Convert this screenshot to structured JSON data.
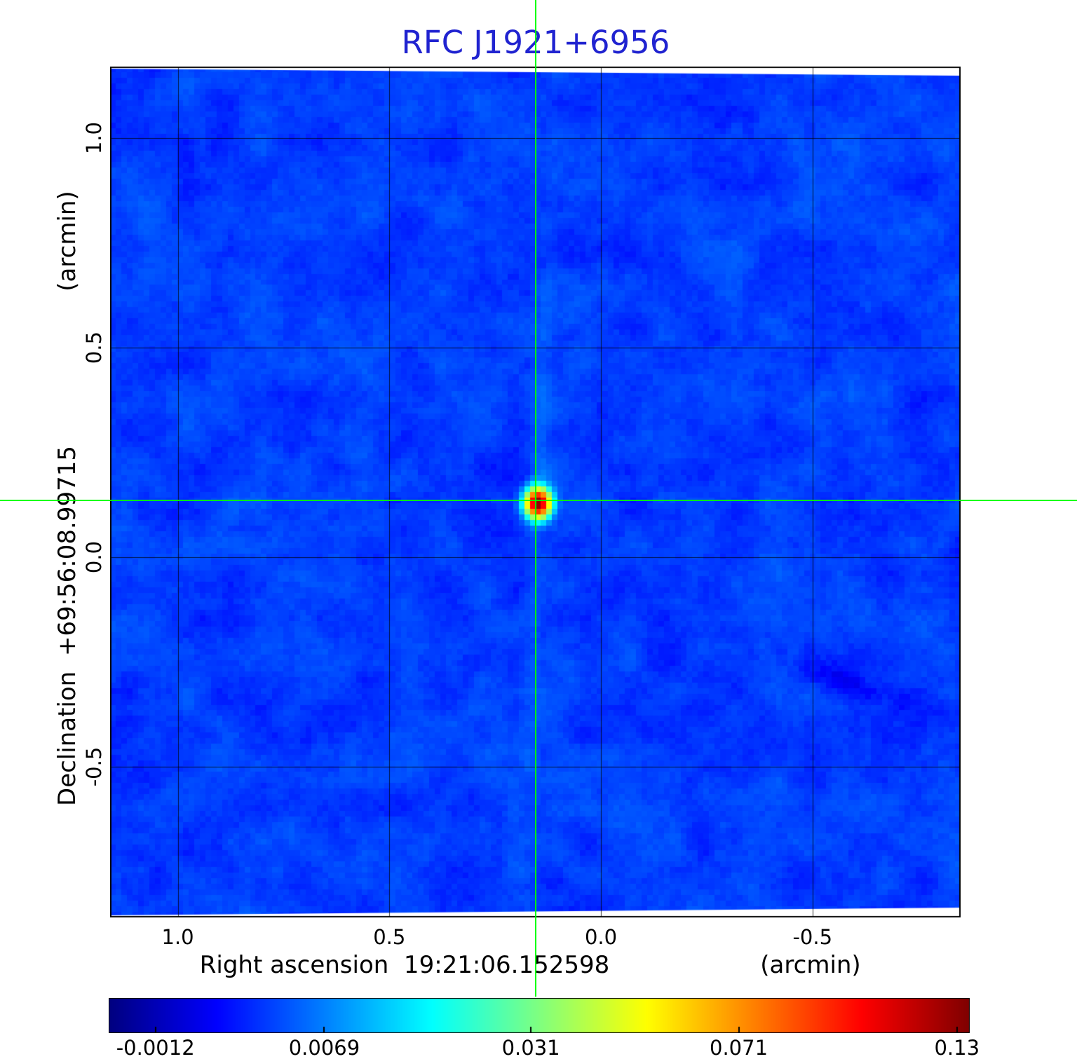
{
  "title": "RFC J1921+6956",
  "colors": {
    "title": "#2023d0",
    "crosshair": "#00ff00",
    "grid": "#000000",
    "frame": "#000000",
    "background": "#ffffff"
  },
  "x_axis": {
    "title": "Right ascension  19:21:06.152598",
    "unit": "(arcmin)",
    "tick_labels": [
      "1.0",
      "0.5",
      "0.0",
      "-0.5"
    ]
  },
  "y_axis": {
    "title": "Declination  +69:56:08.99715",
    "unit": "(arcmin)",
    "tick_labels": [
      "1.0",
      "0.5",
      "0.0",
      "-0.5"
    ]
  },
  "colorbar": {
    "tick_labels": [
      "-0.0012",
      "0.0069",
      "0.031",
      "0.071",
      "0.13"
    ]
  },
  "chart_data": {
    "type": "heatmap",
    "title": "RFC J1921+6956",
    "xlabel": "Right ascension 19:21:06.152598 (arcmin)",
    "ylabel": "Declination +69:56:08.99715 (arcmin)",
    "x_ticks": [
      1.0,
      0.5,
      0.0,
      -0.5
    ],
    "y_ticks": [
      1.0,
      0.5,
      0.0,
      -0.5
    ],
    "x_range": [
      1.16,
      -0.85
    ],
    "y_range": [
      -0.86,
      1.17
    ],
    "scale": "sqrt",
    "colormap": "jet",
    "grid": true,
    "crosshair": true,
    "value_range": [
      -0.0016,
      0.134
    ],
    "colorbar_tick_values": [
      -0.0012,
      0.0069,
      0.031,
      0.071,
      0.13
    ],
    "background_level": 0.003,
    "source": {
      "x_arcmin": 0.155,
      "y_arcmin": 0.135,
      "peak": 0.13,
      "sigma_arcmin": 0.02
    }
  }
}
